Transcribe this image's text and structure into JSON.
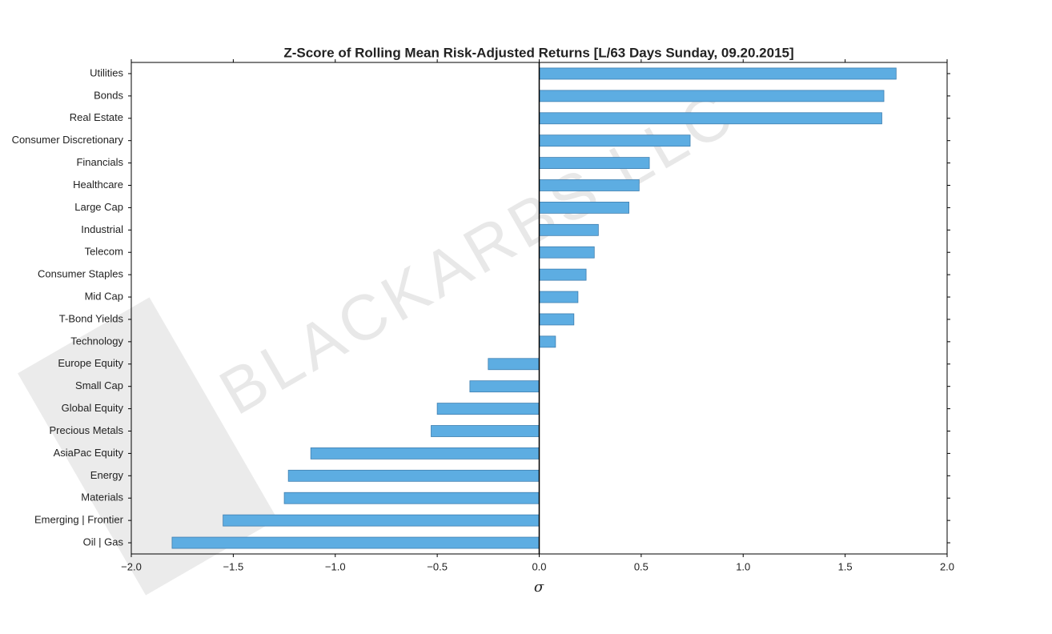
{
  "chart_data": {
    "type": "barh",
    "title": "Z-Score of Rolling Mean Risk-Adjusted Returns [L/63 Days Sunday, 09.20.2015]",
    "xlabel": "σ",
    "watermark": "BLACKARBS LLC",
    "categories": [
      "Utilities",
      "Bonds",
      "Real Estate",
      "Consumer Discretionary",
      "Financials",
      "Healthcare",
      "Large Cap",
      "Industrial",
      "Telecom",
      "Consumer Staples",
      "Mid Cap",
      "T-Bond Yields",
      "Technology",
      "Europe Equity",
      "Small Cap",
      "Global Equity",
      "Precious Metals",
      "AsiaPac Equity",
      "Energy",
      "Materials",
      "Emerging | Frontier",
      "Oil | Gas"
    ],
    "values": [
      1.75,
      1.69,
      1.68,
      0.74,
      0.54,
      0.49,
      0.44,
      0.29,
      0.27,
      0.23,
      0.19,
      0.17,
      0.08,
      -0.25,
      -0.34,
      -0.5,
      -0.53,
      -1.12,
      -1.23,
      -1.25,
      -1.55,
      -1.8
    ],
    "color": "#5dade2",
    "xlim": [
      -2,
      2
    ],
    "xticks": [
      {
        "value": -2,
        "label": "−2.0"
      },
      {
        "value": -1.5,
        "label": "−1.5"
      },
      {
        "value": -1,
        "label": "−1.0"
      },
      {
        "value": -0.5,
        "label": "−0.5"
      },
      {
        "value": 0,
        "label": "0.0"
      },
      0.5,
      {
        "value": 1,
        "label": "1.0"
      },
      1.5,
      {
        "value": 2,
        "label": "2.0"
      }
    ],
    "grid": false
  }
}
